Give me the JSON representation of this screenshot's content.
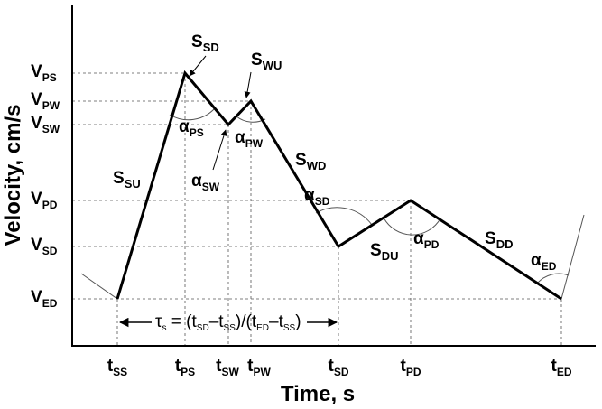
{
  "axes": {
    "y_label": "Velocity, cm/s",
    "x_label": "Time, s"
  },
  "y_labels": [
    {
      "main": "V",
      "sub": "PS"
    },
    {
      "main": "V",
      "sub": "PW"
    },
    {
      "main": "V",
      "sub": "SW"
    },
    {
      "main": "V",
      "sub": "PD"
    },
    {
      "main": "V",
      "sub": "SD"
    },
    {
      "main": "V",
      "sub": "ED"
    }
  ],
  "x_labels": [
    {
      "main": "t",
      "sub": "SS"
    },
    {
      "main": "t",
      "sub": "PS"
    },
    {
      "main": "t",
      "sub": "SW"
    },
    {
      "main": "t",
      "sub": "PW"
    },
    {
      "main": "t",
      "sub": "SD"
    },
    {
      "main": "t",
      "sub": "PD"
    },
    {
      "main": "t",
      "sub": "ED"
    }
  ],
  "segment_labels": [
    {
      "main": "S",
      "sub": "SD"
    },
    {
      "main": "S",
      "sub": "WU"
    },
    {
      "main": "S",
      "sub": "SU"
    },
    {
      "main": "S",
      "sub": "WD"
    },
    {
      "main": "S",
      "sub": "DU"
    },
    {
      "main": "S",
      "sub": "DD"
    }
  ],
  "angle_labels": [
    {
      "main": "α",
      "sub": "PS"
    },
    {
      "main": "α",
      "sub": "PW"
    },
    {
      "main": "α",
      "sub": "SW"
    },
    {
      "main": "α",
      "sub": "SD"
    },
    {
      "main": "α",
      "sub": "PD"
    },
    {
      "main": "α",
      "sub": "ED"
    }
  ],
  "formula": [
    "τ",
    "s",
    " = (t",
    "SD",
    "–t",
    "SS",
    ")/(t",
    "ED",
    "–t",
    "SS",
    ")"
  ]
}
